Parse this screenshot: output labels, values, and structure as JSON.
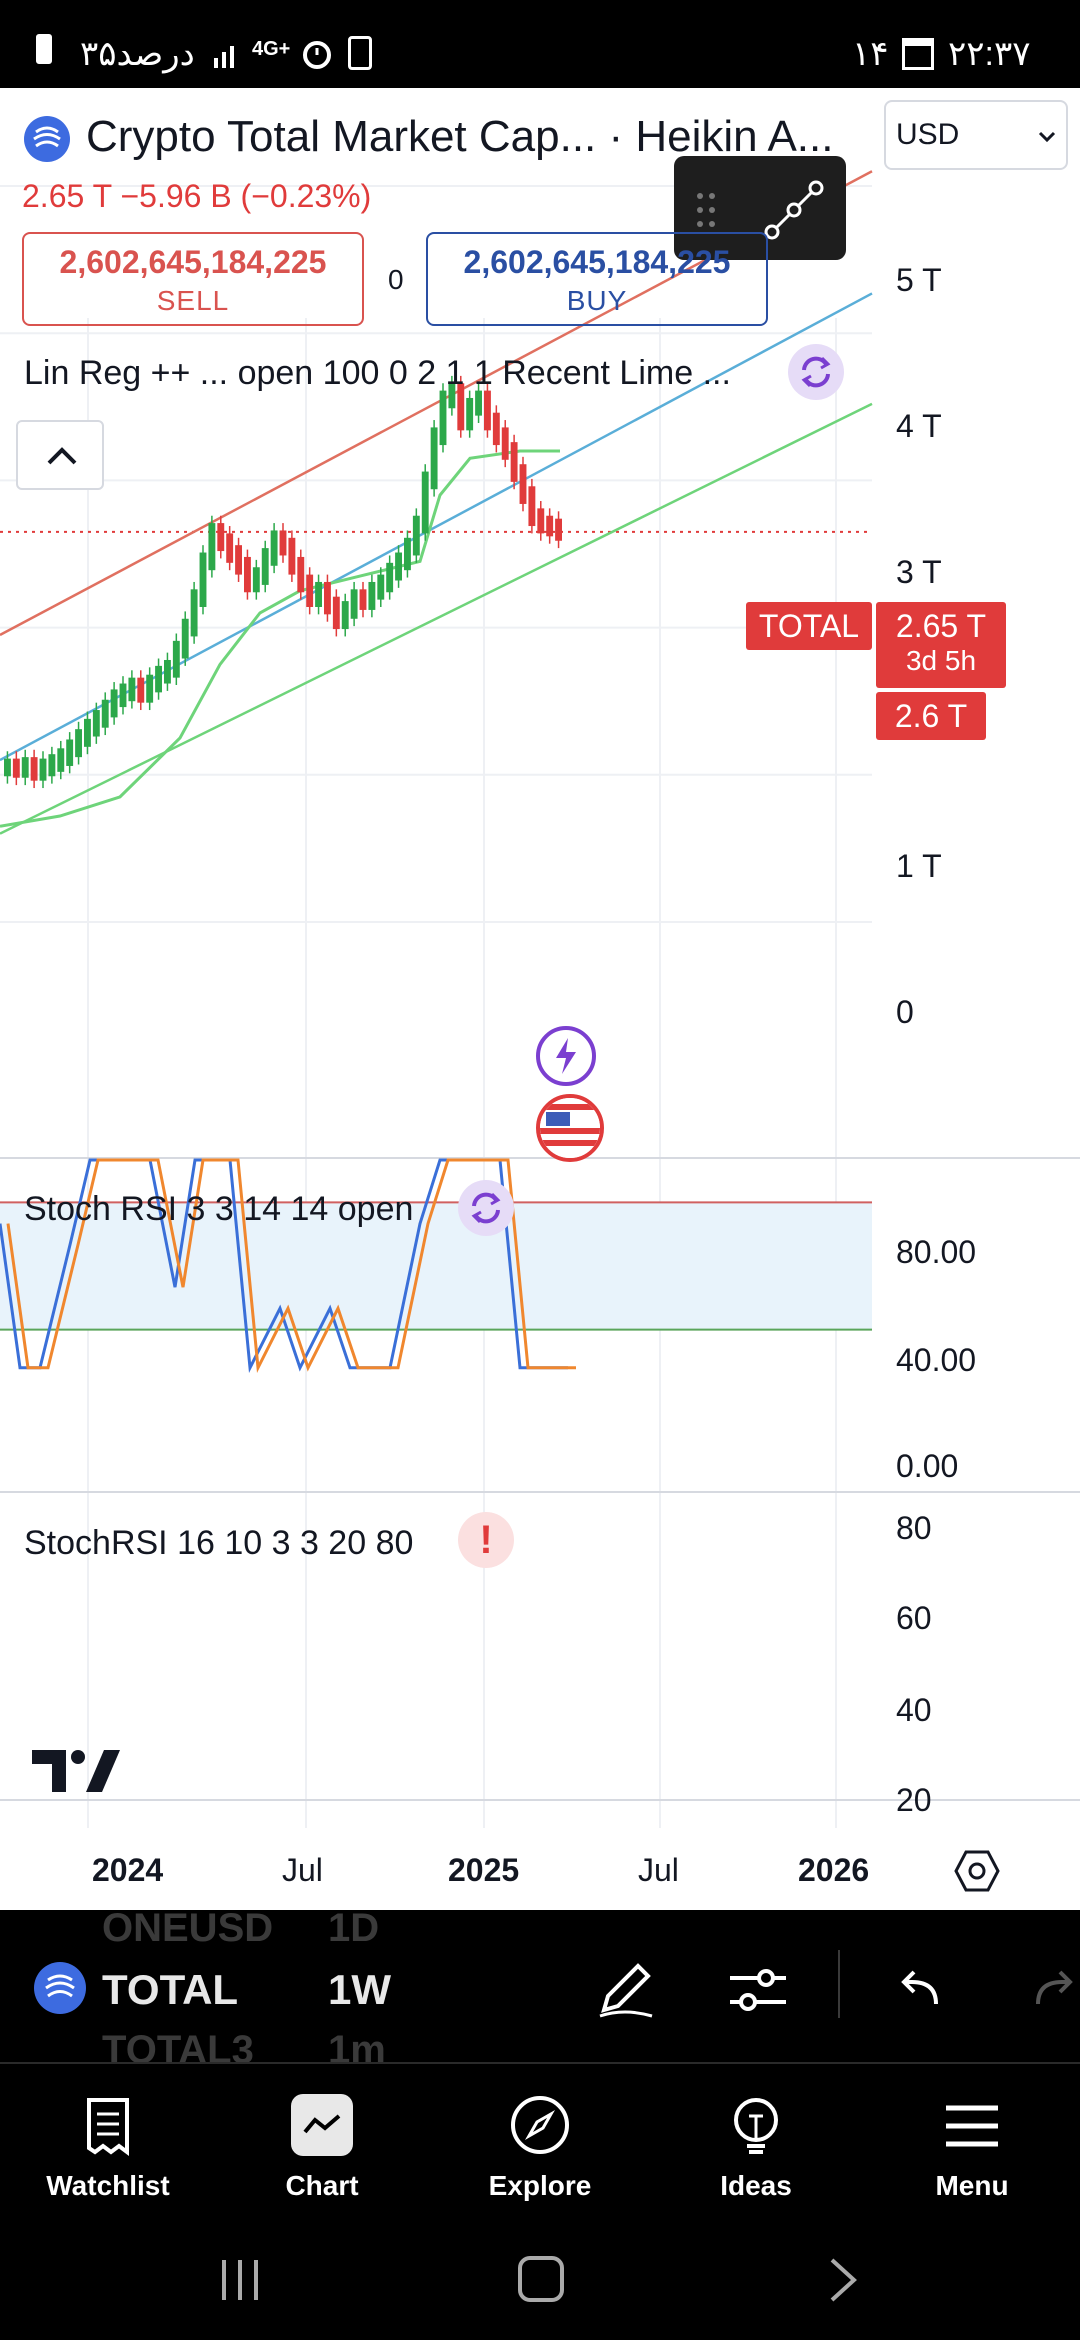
{
  "status_bar": {
    "battery_text": "۳۵درصد",
    "network": "4G+",
    "date": "۱۴",
    "time": "۲۲:۳۷"
  },
  "header": {
    "title": "Crypto Total Market Cap... · Heikin A...",
    "price_change": "2.65 T  −5.96 B (−0.23%)",
    "currency": "USD"
  },
  "trade": {
    "sell_value": "2,602,645,184,225",
    "sell_label": "SELL",
    "spread": "0",
    "buy_value": "2,602,645,184,225",
    "buy_label": "BUY"
  },
  "indicators": {
    "main_label": "Lin Reg ++ ...  open 100 0 2 1 1 Recent Lime ...",
    "stoch_label": "Stoch RSI 3 3 14 14 open",
    "stoch2_label": "StochRSI 16 10 3 3 20 80"
  },
  "price_axis": {
    "ticks": [
      "5 T",
      "4 T",
      "3 T",
      "1 T",
      "0"
    ],
    "symbol_tag": "TOTAL",
    "last_price": "2.65 T",
    "countdown": "3d 5h",
    "level": "2.6 T"
  },
  "stoch_axis": {
    "ticks": [
      "80.00",
      "40.00",
      "0.00"
    ]
  },
  "stoch2_axis": {
    "ticks": [
      "80",
      "60",
      "40",
      "20"
    ]
  },
  "time_axis": {
    "ticks": [
      "2024",
      "Jul",
      "2025",
      "Jul",
      "2026"
    ]
  },
  "toolbar": {
    "symbol": "TOTAL",
    "interval": "1W",
    "ghost_symbol_above": "ONEUSD",
    "ghost_interval_above": "1D",
    "ghost_symbol_below": "TOTAL3",
    "ghost_interval_below": "1m"
  },
  "nav": {
    "items": [
      {
        "label": "Watchlist",
        "icon": "watchlist-icon"
      },
      {
        "label": "Chart",
        "icon": "chart-icon"
      },
      {
        "label": "Explore",
        "icon": "compass-icon"
      },
      {
        "label": "Ideas",
        "icon": "lightbulb-icon"
      },
      {
        "label": "Menu",
        "icon": "hamburger-icon"
      }
    ]
  },
  "colors": {
    "bearish": "#e03b3b",
    "bullish": "#2ca84a",
    "stoch_k": "#3a6fd8",
    "stoch_d": "#f0872e",
    "reg_red": "#e07060",
    "reg_blue": "#5aaed8",
    "reg_green": "#6ed47a",
    "accent_purple": "#7b3fd0"
  },
  "chart_data": {
    "type": "candlestick",
    "y_unit": "T",
    "ylim": [
      0,
      5.5
    ],
    "x_ticks": [
      "2024",
      "Jul",
      "2025",
      "Jul",
      "2026"
    ],
    "last_price": 2.65,
    "stoch_rsi": {
      "upper_band": 80,
      "lower_band": 20,
      "ylim": [
        0,
        100
      ]
    }
  }
}
